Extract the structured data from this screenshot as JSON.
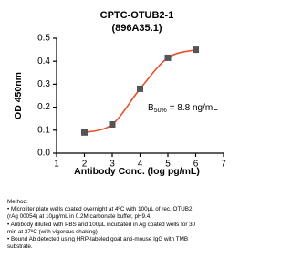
{
  "chart_data": {
    "type": "line",
    "title": "CPTC-OTUB2-1",
    "subtitle": "(896A35.1)",
    "x_label": "Antibody Conc. (log pg/mL)",
    "y_label": "OD 450nm",
    "annotation": {
      "base": "B",
      "subscript": "50%",
      "text": "= 8.8 ng/mL"
    },
    "x": [
      2,
      3,
      4,
      5,
      6
    ],
    "series": [
      {
        "color": "#e8502a",
        "marker_color": "#555555",
        "values": [
          0.09,
          0.125,
          0.28,
          0.415,
          0.45
        ]
      }
    ],
    "xlim": [
      1,
      7
    ],
    "xticks": [
      1,
      2,
      3,
      4,
      5,
      6,
      7
    ],
    "ylim": [
      0,
      0.5
    ],
    "yticks": [
      {
        "value": 0,
        "label": "0.0"
      },
      0.1,
      0.2,
      0.3,
      0.4,
      0.5
    ],
    "grid": false
  },
  "method": {
    "heading": "Method:",
    "lines": [
      "• Microtiter plate wells coated overnight at 4ºC  with 100µL of rec. OTUB2",
      "(rAg 00054) at 10µg/mL in 0.2M carbonate buffer, pH9.4.",
      "• Antibody diluted with PBS and 100µL incubated in Ag coated wells for 30",
      "min at 37ºC (with vigorous shaking)",
      "• Bound Ab detected using HRP-labeled goat anti-mouse IgG with TMB",
      "substrate."
    ]
  }
}
